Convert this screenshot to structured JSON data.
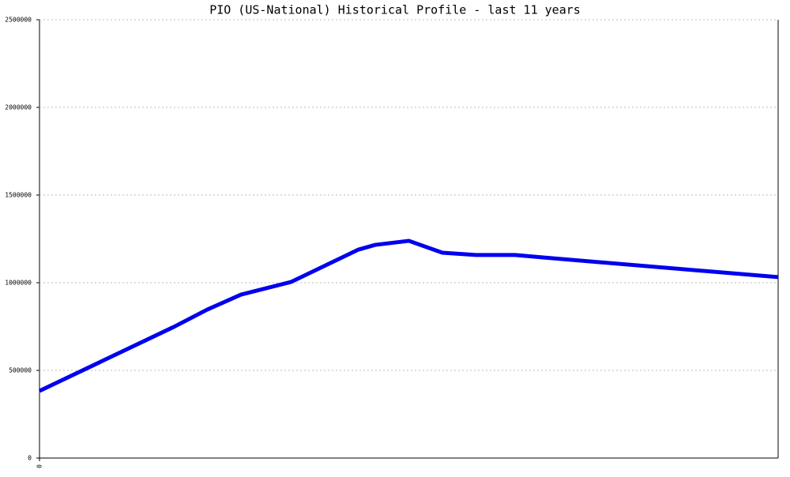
{
  "chart_data": {
    "type": "line",
    "title": "PIO (US-National) Historical Profile - last 11 years",
    "x": [
      0,
      24,
      30,
      36,
      45,
      57,
      60,
      66,
      72,
      78,
      85,
      90,
      132
    ],
    "series": [
      {
        "color": "#0000ee",
        "values": [
          383000,
          748000,
          847000,
          932000,
          1005000,
          1189000,
          1216000,
          1239000,
          1171000,
          1158000,
          1158000,
          1144000,
          1032000
        ]
      }
    ],
    "xlim": [
      0,
      132
    ],
    "xticks": [
      0
    ],
    "ylim": [
      0,
      2500000
    ],
    "yticks": [
      0,
      500000,
      1000000,
      1500000,
      2000000,
      2500000
    ],
    "grid": true
  }
}
